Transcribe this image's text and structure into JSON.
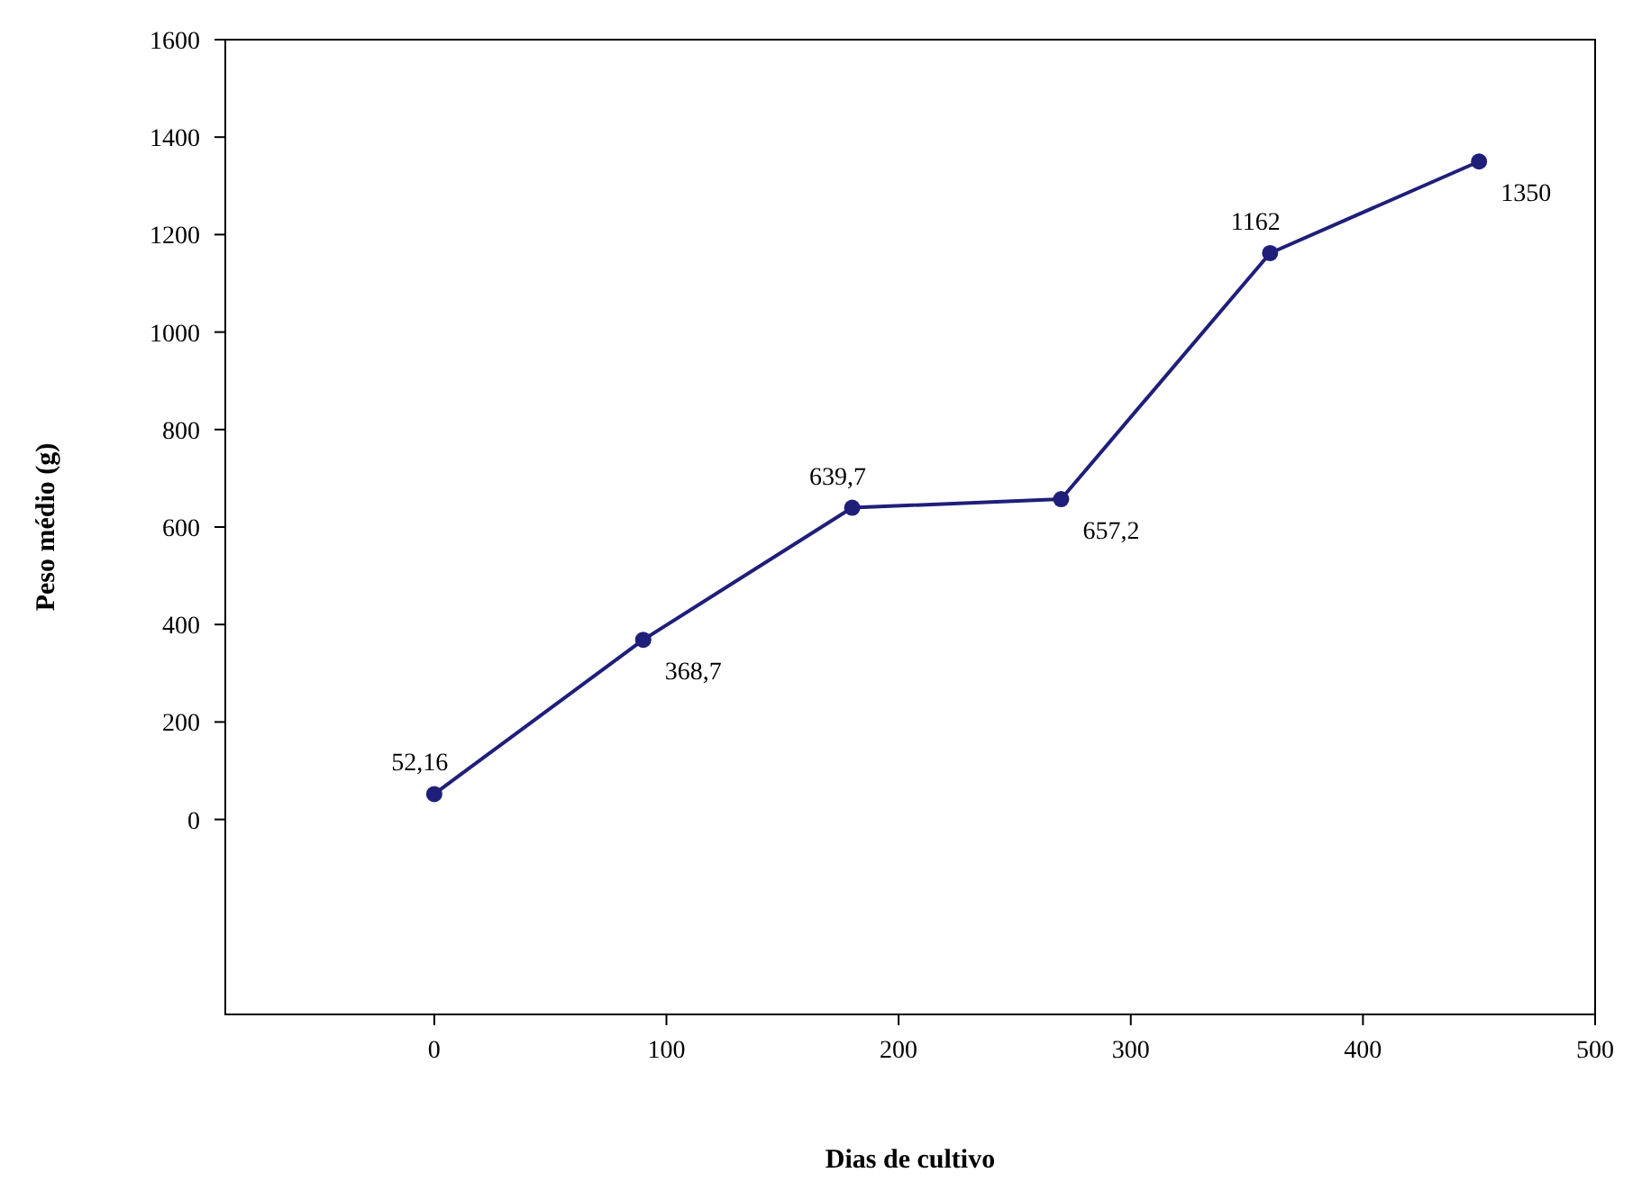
{
  "chart_data": {
    "type": "line",
    "xlabel": "Dias de cultivo",
    "ylabel": "Peso médio (g)",
    "x": [
      0,
      90,
      180,
      270,
      360,
      450
    ],
    "series": [
      {
        "color": "#1f1f7a",
        "values": [
          52.16,
          368.7,
          639.7,
          657.2,
          1162,
          1350
        ],
        "value_labels": [
          "52,16",
          "368,7",
          "639,7",
          "657,2",
          "1162",
          "1350"
        ]
      }
    ],
    "xlim": [
      -90,
      500
    ],
    "xticks": [
      0,
      100,
      200,
      300,
      400,
      500
    ],
    "ylim": [
      -400,
      1600
    ],
    "yticks": [
      0,
      200,
      400,
      600,
      800,
      1000,
      1200,
      1400,
      1600
    ],
    "grid": false,
    "marker": "circle",
    "line_style": "solid"
  }
}
